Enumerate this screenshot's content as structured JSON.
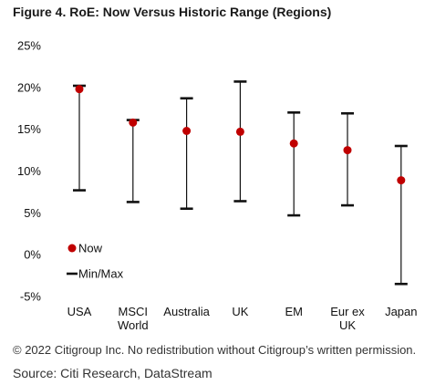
{
  "title": "Figure 4. RoE: Now Versus Historic Range (Regions)",
  "footer": {
    "copyright": "© 2022 Citigroup Inc. No redistribution without Citigroup’s written permission.",
    "source": "Source: Citi Research, DataStream"
  },
  "colors": {
    "now_marker": "#c00000",
    "range": "#111111"
  },
  "chart_data": {
    "type": "scatter",
    "title": "Figure 4. RoE: Now Versus Historic Range (Regions)",
    "xlabel": "",
    "ylabel": "",
    "ylim": [
      -5,
      25
    ],
    "yticks": [
      -5,
      0,
      5,
      10,
      15,
      20,
      25
    ],
    "ytick_labels": [
      "-5%",
      "0%",
      "5%",
      "10%",
      "15%",
      "20%",
      "25%"
    ],
    "grid": false,
    "legend_position": "bottom-left",
    "categories": [
      [
        "USA"
      ],
      [
        "MSCI",
        "World"
      ],
      [
        "Australia"
      ],
      [
        "UK"
      ],
      [
        "EM"
      ],
      [
        "Eur ex",
        "UK"
      ],
      [
        "Japan"
      ]
    ],
    "series": [
      {
        "name": "Now",
        "marker": "circle",
        "values": [
          19.8,
          15.8,
          14.8,
          14.7,
          13.3,
          12.5,
          8.9
        ]
      },
      {
        "name": "Min/Max",
        "marker": "range",
        "min": [
          7.7,
          6.3,
          5.5,
          6.4,
          4.7,
          5.9,
          -3.5
        ],
        "max": [
          20.2,
          16.1,
          18.7,
          20.7,
          17.0,
          16.9,
          13.0
        ]
      }
    ]
  }
}
